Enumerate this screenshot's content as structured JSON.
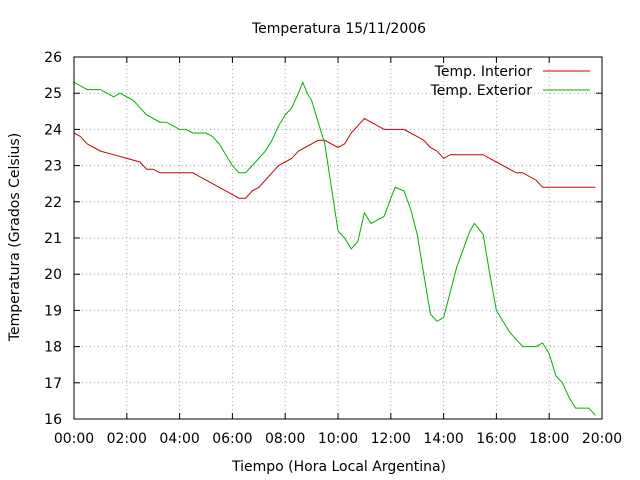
{
  "chart_data": {
    "type": "line",
    "title": "Temperatura 15/11/2006",
    "xlabel": "Tiempo (Hora Local Argentina)",
    "ylabel": "Temperatura (Grados Celsius)",
    "xlim": [
      "00:00",
      "20:00"
    ],
    "ylim": [
      16,
      26
    ],
    "xticks": [
      "00:00",
      "02:00",
      "04:00",
      "06:00",
      "08:00",
      "10:00",
      "12:00",
      "14:00",
      "16:00",
      "18:00",
      "20:00"
    ],
    "yticks": [
      16,
      17,
      18,
      19,
      20,
      21,
      22,
      23,
      24,
      25,
      26
    ],
    "grid": true,
    "legend_position": "top-right",
    "series": [
      {
        "name": "Temp. Interior",
        "color": "#cc0000",
        "points": [
          [
            "00:00",
            23.9
          ],
          [
            "00:15",
            23.8
          ],
          [
            "00:30",
            23.6
          ],
          [
            "00:45",
            23.5
          ],
          [
            "01:00",
            23.4
          ],
          [
            "01:30",
            23.3
          ],
          [
            "02:00",
            23.2
          ],
          [
            "02:30",
            23.1
          ],
          [
            "02:45",
            22.9
          ],
          [
            "03:00",
            22.9
          ],
          [
            "03:15",
            22.8
          ],
          [
            "04:00",
            22.8
          ],
          [
            "04:30",
            22.8
          ],
          [
            "04:45",
            22.7
          ],
          [
            "05:00",
            22.6
          ],
          [
            "05:15",
            22.5
          ],
          [
            "05:30",
            22.4
          ],
          [
            "05:45",
            22.3
          ],
          [
            "06:00",
            22.2
          ],
          [
            "06:15",
            22.1
          ],
          [
            "06:30",
            22.1
          ],
          [
            "06:45",
            22.3
          ],
          [
            "07:00",
            22.4
          ],
          [
            "07:15",
            22.6
          ],
          [
            "07:30",
            22.8
          ],
          [
            "07:45",
            23.0
          ],
          [
            "08:00",
            23.1
          ],
          [
            "08:15",
            23.2
          ],
          [
            "08:30",
            23.4
          ],
          [
            "08:45",
            23.5
          ],
          [
            "09:00",
            23.6
          ],
          [
            "09:15",
            23.7
          ],
          [
            "09:30",
            23.7
          ],
          [
            "09:45",
            23.6
          ],
          [
            "10:00",
            23.5
          ],
          [
            "10:15",
            23.6
          ],
          [
            "10:30",
            23.9
          ],
          [
            "10:45",
            24.1
          ],
          [
            "11:00",
            24.3
          ],
          [
            "11:15",
            24.2
          ],
          [
            "11:30",
            24.1
          ],
          [
            "11:45",
            24.0
          ],
          [
            "12:00",
            24.0
          ],
          [
            "12:30",
            24.0
          ],
          [
            "12:45",
            23.9
          ],
          [
            "13:00",
            23.8
          ],
          [
            "13:15",
            23.7
          ],
          [
            "13:30",
            23.5
          ],
          [
            "13:45",
            23.4
          ],
          [
            "14:00",
            23.2
          ],
          [
            "14:15",
            23.3
          ],
          [
            "14:30",
            23.3
          ],
          [
            "15:00",
            23.3
          ],
          [
            "15:30",
            23.3
          ],
          [
            "15:45",
            23.2
          ],
          [
            "16:00",
            23.1
          ],
          [
            "16:15",
            23.0
          ],
          [
            "16:30",
            22.9
          ],
          [
            "16:45",
            22.8
          ],
          [
            "17:00",
            22.8
          ],
          [
            "17:15",
            22.7
          ],
          [
            "17:30",
            22.6
          ],
          [
            "17:45",
            22.4
          ],
          [
            "18:00",
            22.4
          ],
          [
            "19:00",
            22.4
          ],
          [
            "19:45",
            22.4
          ]
        ]
      },
      {
        "name": "Temp. Exterior",
        "color": "#00b000",
        "points": [
          [
            "00:00",
            25.3
          ],
          [
            "00:15",
            25.2
          ],
          [
            "00:30",
            25.1
          ],
          [
            "01:00",
            25.1
          ],
          [
            "01:15",
            25.0
          ],
          [
            "01:30",
            24.9
          ],
          [
            "01:45",
            25.0
          ],
          [
            "02:00",
            24.9
          ],
          [
            "02:15",
            24.8
          ],
          [
            "02:30",
            24.6
          ],
          [
            "02:45",
            24.4
          ],
          [
            "03:00",
            24.3
          ],
          [
            "03:15",
            24.2
          ],
          [
            "03:30",
            24.2
          ],
          [
            "03:45",
            24.1
          ],
          [
            "04:00",
            24.0
          ],
          [
            "04:15",
            24.0
          ],
          [
            "04:30",
            23.9
          ],
          [
            "05:00",
            23.9
          ],
          [
            "05:15",
            23.8
          ],
          [
            "05:30",
            23.6
          ],
          [
            "05:45",
            23.3
          ],
          [
            "06:00",
            23.0
          ],
          [
            "06:15",
            22.8
          ],
          [
            "06:30",
            22.8
          ],
          [
            "06:45",
            23.0
          ],
          [
            "07:00",
            23.2
          ],
          [
            "07:15",
            23.4
          ],
          [
            "07:30",
            23.7
          ],
          [
            "07:45",
            24.1
          ],
          [
            "08:00",
            24.4
          ],
          [
            "08:15",
            24.6
          ],
          [
            "08:30",
            25.0
          ],
          [
            "08:40",
            25.3
          ],
          [
            "08:50",
            25.0
          ],
          [
            "09:00",
            24.8
          ],
          [
            "09:15",
            24.2
          ],
          [
            "09:30",
            23.6
          ],
          [
            "09:45",
            22.4
          ],
          [
            "10:00",
            21.2
          ],
          [
            "10:15",
            21.0
          ],
          [
            "10:30",
            20.7
          ],
          [
            "10:45",
            20.9
          ],
          [
            "11:00",
            21.7
          ],
          [
            "11:15",
            21.4
          ],
          [
            "11:30",
            21.5
          ],
          [
            "11:45",
            21.6
          ],
          [
            "12:00",
            22.1
          ],
          [
            "12:10",
            22.4
          ],
          [
            "12:30",
            22.3
          ],
          [
            "12:45",
            21.8
          ],
          [
            "13:00",
            21.1
          ],
          [
            "13:15",
            20.0
          ],
          [
            "13:30",
            18.9
          ],
          [
            "13:45",
            18.7
          ],
          [
            "14:00",
            18.8
          ],
          [
            "14:15",
            19.5
          ],
          [
            "14:30",
            20.2
          ],
          [
            "14:45",
            20.7
          ],
          [
            "15:00",
            21.2
          ],
          [
            "15:10",
            21.4
          ],
          [
            "15:30",
            21.1
          ],
          [
            "15:45",
            20.0
          ],
          [
            "16:00",
            19.0
          ],
          [
            "16:15",
            18.7
          ],
          [
            "16:30",
            18.4
          ],
          [
            "16:45",
            18.2
          ],
          [
            "17:00",
            18.0
          ],
          [
            "17:30",
            18.0
          ],
          [
            "17:45",
            18.1
          ],
          [
            "18:00",
            17.8
          ],
          [
            "18:15",
            17.2
          ],
          [
            "18:30",
            17.0
          ],
          [
            "18:45",
            16.6
          ],
          [
            "19:00",
            16.3
          ],
          [
            "19:30",
            16.3
          ],
          [
            "19:45",
            16.1
          ]
        ]
      }
    ]
  }
}
